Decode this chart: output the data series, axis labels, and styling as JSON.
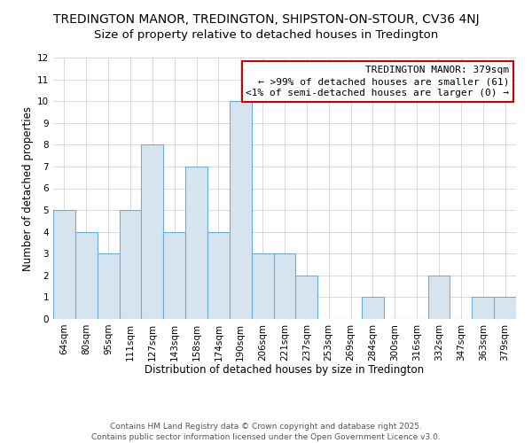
{
  "title": "TREDINGTON MANOR, TREDINGTON, SHIPSTON-ON-STOUR, CV36 4NJ",
  "subtitle": "Size of property relative to detached houses in Tredington",
  "xlabel": "Distribution of detached houses by size in Tredington",
  "ylabel": "Number of detached properties",
  "categories": [
    "64sqm",
    "80sqm",
    "95sqm",
    "111sqm",
    "127sqm",
    "143sqm",
    "158sqm",
    "174sqm",
    "190sqm",
    "206sqm",
    "221sqm",
    "237sqm",
    "253sqm",
    "269sqm",
    "284sqm",
    "300sqm",
    "316sqm",
    "332sqm",
    "347sqm",
    "363sqm",
    "379sqm"
  ],
  "values": [
    5,
    4,
    3,
    5,
    8,
    4,
    7,
    4,
    10,
    3,
    3,
    2,
    0,
    0,
    1,
    0,
    0,
    2,
    0,
    1,
    1
  ],
  "bar_color": "#d6e4f0",
  "bar_edge_color": "#6aaed6",
  "ylim": [
    0,
    12
  ],
  "yticks": [
    0,
    1,
    2,
    3,
    4,
    5,
    6,
    7,
    8,
    9,
    10,
    11,
    12
  ],
  "legend_box_color": "#cc0000",
  "legend_title": "TREDINGTON MANOR: 379sqm",
  "legend_line1": "← >99% of detached houses are smaller (61)",
  "legend_line2": "<1% of semi-detached houses are larger (0) →",
  "footer_line1": "Contains HM Land Registry data © Crown copyright and database right 2025.",
  "footer_line2": "Contains public sector information licensed under the Open Government Licence v3.0.",
  "title_fontsize": 10,
  "subtitle_fontsize": 9.5,
  "xlabel_fontsize": 8.5,
  "ylabel_fontsize": 8.5,
  "tick_fontsize": 7.5,
  "legend_fontsize": 8,
  "footer_fontsize": 6.5
}
